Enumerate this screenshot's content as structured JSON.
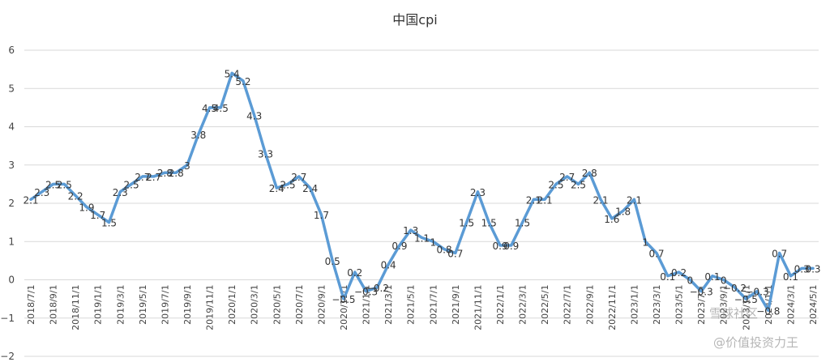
{
  "chart_data": {
    "type": "line",
    "title": "中国cpi",
    "xlabel": "",
    "ylabel": "",
    "ylim": [
      -2,
      6
    ],
    "yticks": [
      -2,
      -1,
      0,
      1,
      2,
      3,
      4,
      5,
      6
    ],
    "ytick_labels": [
      "−2",
      "−1",
      "0",
      "1",
      "2",
      "3",
      "4",
      "5",
      "6"
    ],
    "grid": true,
    "series_color": "#5b9bd5",
    "x": [
      "2018/7/1",
      "2018/8/1",
      "2018/9/1",
      "2018/10/1",
      "2018/11/1",
      "2018/12/1",
      "2019/1/1",
      "2019/2/1",
      "2019/3/1",
      "2019/4/1",
      "2019/5/1",
      "2019/6/1",
      "2019/7/1",
      "2019/8/1",
      "2019/9/1",
      "2019/10/1",
      "2019/11/1",
      "2019/12/1",
      "2020/1/1",
      "2020/2/1",
      "2020/3/1",
      "2020/4/1",
      "2020/5/1",
      "2020/6/1",
      "2020/7/1",
      "2020/8/1",
      "2020/9/1",
      "2020/10/1",
      "2020/11/1",
      "2020/12/1",
      "2021/1/1",
      "2021/2/1",
      "2021/3/1",
      "2021/4/1",
      "2021/5/1",
      "2021/6/1",
      "2021/7/1",
      "2021/8/1",
      "2021/9/1",
      "2021/10/1",
      "2021/11/1",
      "2021/12/1",
      "2022/1/1",
      "2022/2/1",
      "2022/3/1",
      "2022/4/1",
      "2022/5/1",
      "2022/6/1",
      "2022/7/1",
      "2022/8/1",
      "2022/9/1",
      "2022/10/1",
      "2022/11/1",
      "2022/12/1",
      "2023/1/1",
      "2023/2/1",
      "2023/3/1",
      "2023/4/1",
      "2023/5/1",
      "2023/6/1",
      "2023/7/1",
      "2023/8/1",
      "2023/9/1",
      "2023/10/1",
      "2023/11/1",
      "2023/12/1",
      "2024/1/1",
      "2024/2/1",
      "2024/3/1",
      "2024/4/1",
      "2024/5/1"
    ],
    "x_tick_labels": [
      "2018/7/1",
      "2018/9/1",
      "2018/11/1",
      "2019/1/1",
      "2019/3/1",
      "2019/5/1",
      "2019/7/1",
      "2019/9/1",
      "2019/11/1",
      "2020/1/1",
      "2020/3/1",
      "2020/5/1",
      "2020/7/1",
      "2020/9/1",
      "2020/11/1",
      "2021/1/1",
      "2021/3/1",
      "2021/5/1",
      "2021/7/1",
      "2021/9/1",
      "2021/11/1",
      "2022/1/1",
      "2022/3/1",
      "2022/5/1",
      "2022/7/1",
      "2022/9/1",
      "2022/11/1",
      "2023/1/1",
      "2023/3/1",
      "2023/5/1",
      "2023/7/1",
      "2023/9/1",
      "2023/11/1",
      "2024/1/1",
      "2024/3/1",
      "2024/5/1"
    ],
    "values": [
      2.1,
      2.3,
      2.5,
      2.5,
      2.2,
      1.9,
      1.7,
      1.5,
      2.3,
      2.5,
      2.7,
      2.7,
      2.8,
      2.8,
      3,
      3.8,
      4.5,
      4.5,
      5.4,
      5.2,
      4.3,
      3.3,
      2.4,
      2.5,
      2.7,
      2.4,
      1.7,
      0.5,
      -0.5,
      0.2,
      -0.3,
      -0.2,
      0.4,
      0.9,
      1.3,
      1.1,
      1,
      0.8,
      0.7,
      1.5,
      2.3,
      1.5,
      0.9,
      0.9,
      1.5,
      2.1,
      2.1,
      2.5,
      2.7,
      2.5,
      2.8,
      2.1,
      1.6,
      1.8,
      2.1,
      1,
      0.7,
      0.1,
      0.2,
      0,
      -0.3,
      0.1,
      0,
      -0.2,
      -0.5,
      -0.3,
      -0.8,
      0.7,
      0.1,
      0.3,
      0.3
    ],
    "data_labels": [
      "2.1",
      "2.3",
      "2.5",
      "2.5",
      "2.2",
      "1.9",
      "1.7",
      "1.5",
      "2.3",
      "2.5",
      "2.7",
      "2.7",
      "2.8",
      "2.8",
      "3",
      "3.8",
      "4.5",
      "4.5",
      "5.4",
      "5.2",
      "4.3",
      "3.3",
      "2.4",
      "2.5",
      "2.7",
      "2.4",
      "1.7",
      "0.5",
      "−0.5",
      "0.2",
      "−0.3",
      "−0.2",
      "0.4",
      "0.9",
      "1.3",
      "1.1",
      "1",
      "0.8",
      "0.7",
      "1.5",
      "2.3",
      "1.5",
      "0.9",
      "0.9",
      "1.5",
      "2.1",
      "2.1",
      "2.5",
      "2.7",
      "2.5",
      "2.8",
      "2.1",
      "1.6",
      "1.8",
      "2.1",
      "1",
      "0.7",
      "0.1",
      "0.2",
      "0",
      "−0.3",
      "0.1",
      "0",
      "−0.2",
      "−0.5",
      "−0.3",
      "−0.8",
      "0.7",
      "0.1",
      "0.3",
      "0.3"
    ]
  },
  "watermark": {
    "line1": "雪球社区",
    "line2": "@价值投资力王"
  }
}
